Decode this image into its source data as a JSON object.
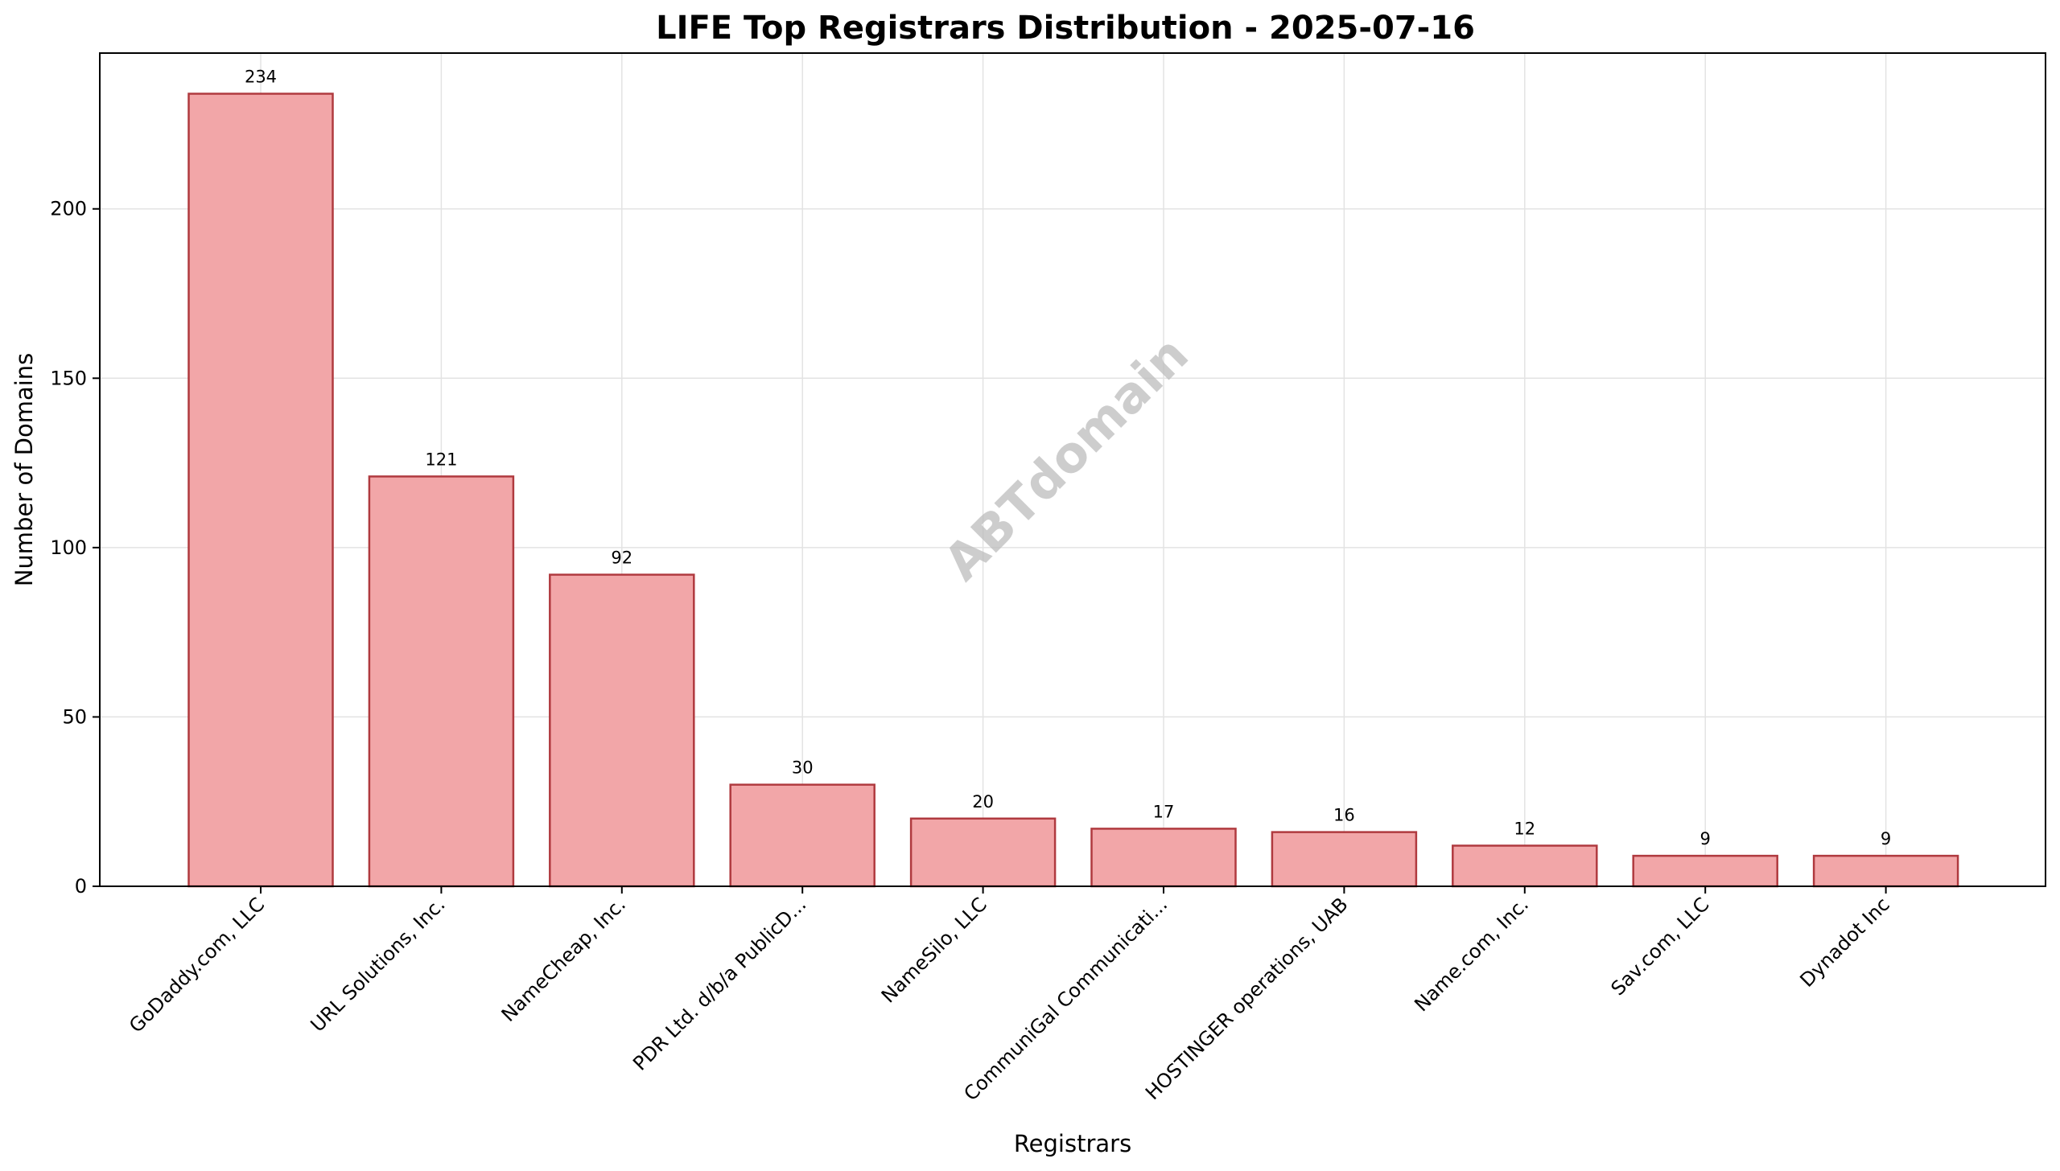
{
  "chart_data": {
    "type": "bar",
    "title": "LIFE Top Registrars Distribution - 2025-07-16",
    "xlabel": "Registrars",
    "ylabel": "Number of Domains",
    "categories": [
      "GoDaddy.com, LLC",
      "URL Solutions, Inc.",
      "NameCheap, Inc.",
      "PDR Ltd. d/b/a PublicD...",
      "NameSilo, LLC",
      "CommuniGal Communicati...",
      "HOSTINGER operations, UAB",
      "Name.com, Inc.",
      "Sav.com, LLC",
      "Dynadot Inc"
    ],
    "values": [
      234,
      121,
      92,
      30,
      20,
      17,
      16,
      12,
      9,
      9
    ],
    "ylim": [
      0,
      246
    ],
    "yticks": [
      0,
      50,
      100,
      150,
      200
    ],
    "grid": true,
    "bar_color": "#f2a6a8",
    "bar_edge_color": "#b03a3f",
    "watermark": "ABTdomain"
  }
}
